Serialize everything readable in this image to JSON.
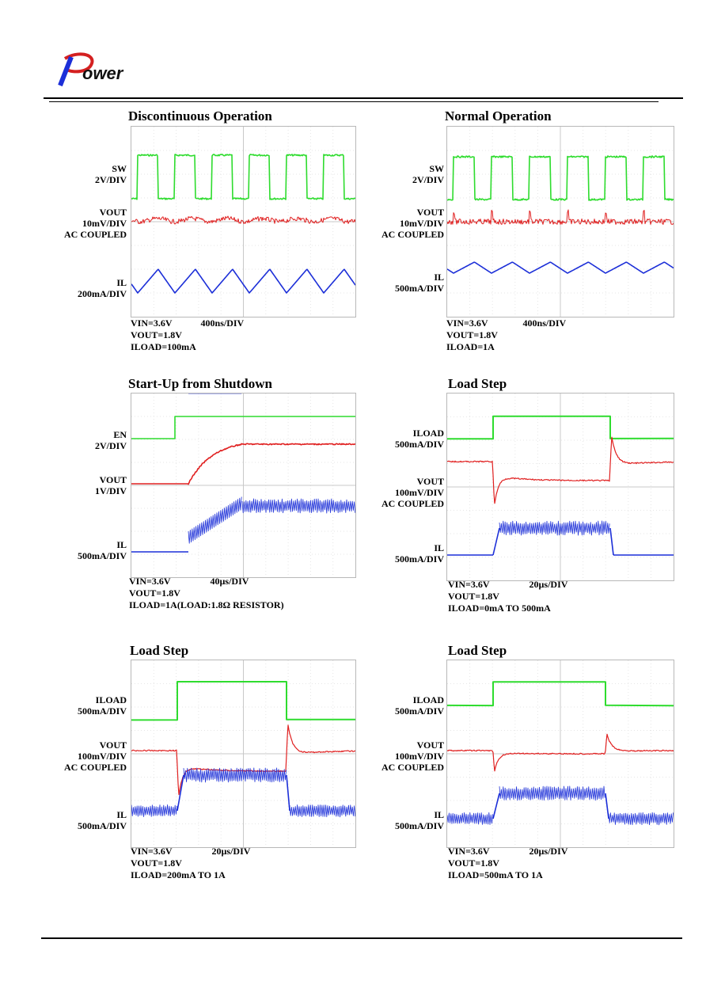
{
  "header": {
    "logo_text": "Power"
  },
  "panels": [
    {
      "title": "Discontinuous Operation",
      "traces": [
        {
          "label": "SW",
          "scale": "2V/DIV",
          "color": "#2edc2e"
        },
        {
          "label": "VOUT",
          "scale": "10mV/DIV",
          "extra": "AC COUPLED",
          "color": "#e02020"
        },
        {
          "label": "IL",
          "scale": "200mA/DIV",
          "color": "#1c2fd8"
        }
      ],
      "notes": {
        "vin": "VIN=3.6V",
        "time": "400ns/DIV",
        "vout": "VOUT=1.8V",
        "iload": "ILOAD=100mA"
      }
    },
    {
      "title": "Normal Operation",
      "traces": [
        {
          "label": "SW",
          "scale": "2V/DIV",
          "color": "#2edc2e"
        },
        {
          "label": "VOUT",
          "scale": "10mV/DIV",
          "extra": "AC COUPLED",
          "color": "#e02020"
        },
        {
          "label": "IL",
          "scale": "500mA/DIV",
          "color": "#1c2fd8"
        }
      ],
      "notes": {
        "vin": "VIN=3.6V",
        "time": "400ns/DIV",
        "vout": "VOUT=1.8V",
        "iload": "ILOAD=1A"
      }
    },
    {
      "title": "Start-Up from Shutdown",
      "traces": [
        {
          "label": "EN",
          "scale": "2V/DIV",
          "color": "#2edc2e"
        },
        {
          "label": "VOUT",
          "scale": "1V/DIV",
          "color": "#e02020"
        },
        {
          "label": "IL",
          "scale": "500mA/DIV",
          "color": "#1c2fd8"
        }
      ],
      "notes": {
        "vin": "VIN=3.6V",
        "time": "40µs/DIV",
        "vout": "VOUT=1.8V",
        "iload": "ILOAD=1A(LOAD:1.8Ω RESISTOR)"
      }
    },
    {
      "title": "Load Step",
      "traces": [
        {
          "label": "ILOAD",
          "scale": "500mA/DIV",
          "color": "#2edc2e"
        },
        {
          "label": "VOUT",
          "scale": "100mV/DIV",
          "extra": "AC COUPLED",
          "color": "#e02020"
        },
        {
          "label": "IL",
          "scale": "500mA/DIV",
          "color": "#1c2fd8"
        }
      ],
      "notes": {
        "vin": "VIN=3.6V",
        "time": "20µs/DIV",
        "vout": "VOUT=1.8V",
        "iload": "ILOAD=0mA TO 500mA"
      }
    },
    {
      "title": "Load Step",
      "traces": [
        {
          "label": "ILOAD",
          "scale": "500mA/DIV",
          "color": "#2edc2e"
        },
        {
          "label": "VOUT",
          "scale": "100mV/DIV",
          "extra": "AC COUPLED",
          "color": "#e02020"
        },
        {
          "label": "IL",
          "scale": "500mA/DIV",
          "color": "#1c2fd8"
        }
      ],
      "notes": {
        "vin": "VIN=3.6V",
        "time": "20µs/DIV",
        "vout": "VOUT=1.8V",
        "iload": "ILOAD=200mA TO 1A"
      }
    },
    {
      "title": "Load Step",
      "traces": [
        {
          "label": "ILOAD",
          "scale": "500mA/DIV",
          "color": "#2edc2e"
        },
        {
          "label": "VOUT",
          "scale": "100mV/DIV",
          "extra": "AC COUPLED",
          "color": "#e02020"
        },
        {
          "label": "IL",
          "scale": "500mA/DIV",
          "color": "#1c2fd8"
        }
      ],
      "notes": {
        "vin": "VIN=3.6V",
        "time": "20µs/DIV",
        "vout": "VOUT=1.8V",
        "iload": "ILOAD=500mA TO 1A"
      }
    }
  ],
  "chart_data": [
    {
      "type": "line",
      "title": "Discontinuous Operation",
      "xlabel": "400ns/DIV",
      "series": [
        {
          "name": "SW",
          "scale": "2V/DIV"
        },
        {
          "name": "VOUT",
          "scale": "10mV/DIV"
        },
        {
          "name": "IL",
          "scale": "200mA/DIV"
        }
      ]
    },
    {
      "type": "line",
      "title": "Normal Operation",
      "xlabel": "400ns/DIV",
      "series": [
        {
          "name": "SW",
          "scale": "2V/DIV"
        },
        {
          "name": "VOUT",
          "scale": "10mV/DIV"
        },
        {
          "name": "IL",
          "scale": "500mA/DIV"
        }
      ]
    },
    {
      "type": "line",
      "title": "Start-Up from Shutdown",
      "xlabel": "40µs/DIV",
      "series": [
        {
          "name": "EN",
          "scale": "2V/DIV"
        },
        {
          "name": "VOUT",
          "scale": "1V/DIV"
        },
        {
          "name": "IL",
          "scale": "500mA/DIV"
        }
      ]
    },
    {
      "type": "line",
      "title": "Load Step",
      "xlabel": "20µs/DIV",
      "series": [
        {
          "name": "ILOAD",
          "scale": "500mA/DIV"
        },
        {
          "name": "VOUT",
          "scale": "100mV/DIV"
        },
        {
          "name": "IL",
          "scale": "500mA/DIV"
        }
      ]
    },
    {
      "type": "line",
      "title": "Load Step",
      "xlabel": "20µs/DIV",
      "series": [
        {
          "name": "ILOAD",
          "scale": "500mA/DIV"
        },
        {
          "name": "VOUT",
          "scale": "100mV/DIV"
        },
        {
          "name": "IL",
          "scale": "500mA/DIV"
        }
      ]
    },
    {
      "type": "line",
      "title": "Load Step",
      "xlabel": "20µs/DIV",
      "series": [
        {
          "name": "ILOAD",
          "scale": "500mA/DIV"
        },
        {
          "name": "VOUT",
          "scale": "100mV/DIV"
        },
        {
          "name": "IL",
          "scale": "500mA/DIV"
        }
      ]
    }
  ]
}
